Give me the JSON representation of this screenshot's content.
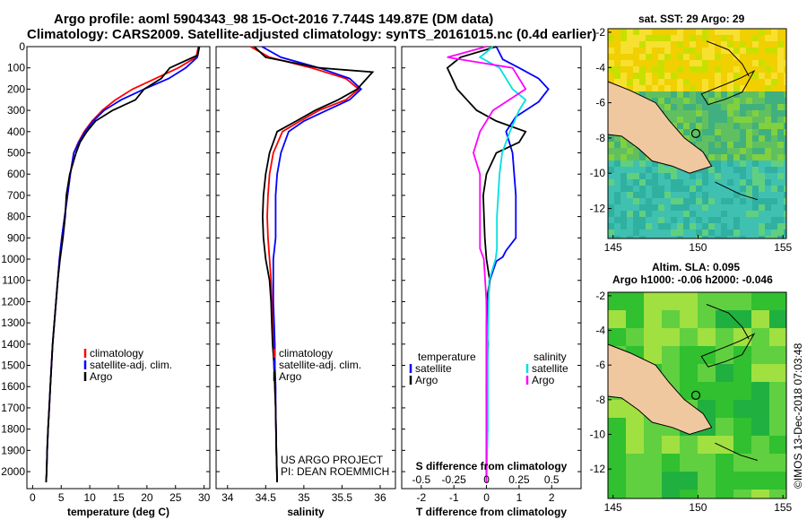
{
  "header": {
    "line1": "Argo profile: aoml 5904343_98 15-Oct-2016 7.744S 149.87E (DM data)",
    "line2": "Climatology: CARS2009. Satellite-adjusted climatology: synTS_20161015.nc (0.4d earlier)"
  },
  "colors": {
    "climatology": "#ff0000",
    "satellite": "#0000ff",
    "argo": "#000000",
    "sal_satellite": "#00e0e0",
    "sal_argo": "#ff00ff",
    "land": "#f0c8a0"
  },
  "credit": {
    "line1": "US ARGO PROJECT",
    "line2": "PI: DEAN ROEMMICH"
  },
  "watermark": "©IMOS 13-Dec-2018 07:03:48",
  "chart_data": [
    {
      "type": "line",
      "name": "temperature",
      "xlabel": "temperature (deg C)",
      "xlim": [
        -1,
        31
      ],
      "ylim": [
        2080,
        0
      ],
      "xticks": [
        0,
        5,
        10,
        15,
        20,
        25,
        30
      ],
      "yticks": [
        0,
        100,
        200,
        300,
        400,
        500,
        600,
        700,
        800,
        900,
        1000,
        1100,
        1200,
        1300,
        1400,
        1500,
        1600,
        1700,
        1800,
        1900,
        2000
      ],
      "legend": [
        "climatology",
        "satellite-adj. clim.",
        "Argo"
      ],
      "series": [
        {
          "name": "climatology",
          "x": [
            29.0,
            28.6,
            25.5,
            21.5,
            17.5,
            14.5,
            12.2,
            10.4,
            9.0,
            8.0,
            7.2,
            6.6,
            6.1,
            5.6,
            5.1,
            4.7,
            4.4,
            4.1,
            3.8,
            3.5,
            3.3,
            3.1,
            2.9,
            2.7,
            2.55,
            2.45,
            2.35
          ],
          "y": [
            0,
            50,
            100,
            150,
            200,
            250,
            300,
            350,
            400,
            450,
            500,
            600,
            700,
            800,
            900,
            1000,
            1100,
            1200,
            1300,
            1400,
            1500,
            1600,
            1700,
            1800,
            1900,
            2000,
            2050
          ]
        },
        {
          "name": "satellite-adj. clim.",
          "x": [
            29.2,
            28.8,
            26.8,
            23.8,
            19.5,
            15.5,
            12.5,
            10.6,
            9.2,
            8.1,
            7.2,
            6.6,
            6.1,
            5.6,
            5.1,
            4.7,
            4.4,
            4.1,
            3.8,
            3.5,
            3.3,
            3.1,
            2.9,
            2.7,
            2.55,
            2.45,
            2.35
          ],
          "y": [
            0,
            50,
            100,
            150,
            200,
            250,
            300,
            350,
            400,
            450,
            500,
            600,
            700,
            800,
            900,
            1000,
            1100,
            1200,
            1300,
            1400,
            1500,
            1600,
            1700,
            1800,
            1900,
            2000,
            2050
          ]
        },
        {
          "name": "Argo",
          "x": [
            29.1,
            28.9,
            24.0,
            22.5,
            19.5,
            18.0,
            14.0,
            11.0,
            9.5,
            8.3,
            7.6,
            6.5,
            5.9,
            5.7,
            5.3,
            4.8,
            4.4,
            4.1,
            3.8,
            3.5,
            3.3,
            3.1,
            2.9,
            2.7,
            2.55,
            2.45,
            2.35
          ],
          "y": [
            0,
            40,
            100,
            150,
            200,
            250,
            300,
            350,
            400,
            450,
            500,
            600,
            700,
            800,
            900,
            1000,
            1100,
            1200,
            1300,
            1400,
            1500,
            1600,
            1700,
            1800,
            1900,
            2000,
            2050
          ]
        }
      ]
    },
    {
      "type": "line",
      "name": "salinity",
      "xlabel": "salinity",
      "xlim": [
        33.85,
        36.2
      ],
      "ylim": [
        2080,
        0
      ],
      "xticks": [
        34,
        34.5,
        35,
        35.5,
        36
      ],
      "legend": [
        "climatology",
        "satellite-adj. clim.",
        "Argo"
      ],
      "series": [
        {
          "name": "climatology",
          "x": [
            34.3,
            34.55,
            35.1,
            35.55,
            35.72,
            35.55,
            35.2,
            34.95,
            34.72,
            34.6,
            34.55,
            34.53,
            34.52,
            34.53,
            34.55,
            34.57,
            34.58,
            34.59,
            34.6,
            34.61,
            34.62,
            34.63,
            34.64,
            34.65
          ],
          "y": [
            0,
            50,
            100,
            150,
            200,
            250,
            300,
            350,
            400,
            500,
            600,
            700,
            800,
            900,
            1000,
            1100,
            1200,
            1300,
            1400,
            1500,
            1600,
            1700,
            1900,
            2050
          ]
        },
        {
          "name": "satellite-adj. clim.",
          "x": [
            34.45,
            34.7,
            35.2,
            35.6,
            35.75,
            35.6,
            35.3,
            35.0,
            34.8,
            34.7,
            34.65,
            34.63,
            34.63,
            34.63,
            34.6,
            34.6,
            34.6,
            34.61,
            34.62,
            34.62,
            34.63,
            34.63,
            34.64,
            34.65
          ],
          "y": [
            0,
            50,
            100,
            150,
            200,
            250,
            300,
            350,
            400,
            500,
            600,
            700,
            800,
            900,
            1000,
            1100,
            1200,
            1300,
            1400,
            1500,
            1600,
            1700,
            1900,
            2050
          ]
        },
        {
          "name": "Argo",
          "x": [
            34.35,
            34.5,
            35.2,
            35.9,
            35.7,
            35.45,
            35.15,
            34.9,
            34.65,
            34.55,
            34.5,
            34.47,
            34.46,
            34.47,
            34.5,
            34.55,
            34.57,
            34.58,
            34.59,
            34.61,
            34.62,
            34.63,
            34.64,
            34.65
          ],
          "y": [
            0,
            50,
            100,
            120,
            200,
            250,
            300,
            350,
            400,
            500,
            600,
            700,
            800,
            900,
            1000,
            1100,
            1200,
            1300,
            1400,
            1500,
            1600,
            1700,
            1900,
            2050
          ]
        }
      ]
    },
    {
      "type": "line",
      "name": "difference",
      "xlabel": "T difference from climatology",
      "xlabel2": "S difference from climatology",
      "xlim": [
        -2.6,
        2.9
      ],
      "xticks": [
        -2,
        -1,
        0,
        1,
        2
      ],
      "xticks2": [
        -0.5,
        -0.25,
        0,
        0.25,
        0.5
      ],
      "xtick2_labels": [
        "-0.5",
        "-0.25",
        "0",
        "0.25",
        "0.5"
      ],
      "ylim": [
        2080,
        0
      ],
      "legend_left_title": "temperature",
      "legend_right_title": "salinity",
      "legend": [
        "satellite",
        "Argo",
        "satellite",
        "Argo"
      ],
      "series": [
        {
          "name": "temperature satellite",
          "x": [
            0.3,
            0.5,
            1.0,
            1.6,
            1.9,
            1.6,
            0.9,
            0.6,
            0.8,
            0.9,
            0.9,
            0.6,
            0.5,
            0.3,
            0.1,
            0.0,
            0.0,
            0.0,
            0.0
          ],
          "y": [
            0,
            60,
            100,
            150,
            200,
            260,
            330,
            400,
            500,
            700,
            900,
            960,
            990,
            1010,
            1100,
            1300,
            1600,
            1900,
            2050
          ]
        },
        {
          "name": "temperature Argo",
          "x": [
            0.3,
            -0.8,
            -1.2,
            -0.9,
            -0.6,
            -0.3,
            0.3,
            1.2,
            1.0,
            0.3,
            0.0,
            -0.1,
            -0.05,
            0.0,
            0.1,
            0.0,
            0.05,
            0.0,
            0.02,
            0.0
          ],
          "y": [
            0,
            50,
            100,
            200,
            250,
            300,
            350,
            400,
            450,
            500,
            600,
            700,
            900,
            1000,
            1100,
            1200,
            1400,
            1600,
            1800,
            2050
          ]
        },
        {
          "name": "salinity satellite",
          "x": [
            0.05,
            -0.05,
            0.1,
            0.2,
            0.3,
            0.25,
            0.18,
            0.12,
            0.1,
            0.08,
            0.08,
            0.07,
            0.02,
            0.01,
            0.01,
            0.0
          ],
          "y": [
            0,
            50,
            100,
            200,
            250,
            300,
            400,
            500,
            600,
            800,
            950,
            1000,
            1100,
            1400,
            1800,
            2050
          ]
        },
        {
          "name": "salinity Argo",
          "x": [
            0.0,
            -0.3,
            0.2,
            0.3,
            0.05,
            -0.05,
            -0.1,
            -0.05,
            -0.05,
            -0.05,
            -0.05,
            -0.02,
            0.0,
            0.0,
            0.0
          ],
          "y": [
            0,
            50,
            100,
            200,
            300,
            400,
            500,
            600,
            800,
            900,
            950,
            1000,
            1200,
            1600,
            2050
          ]
        }
      ]
    },
    {
      "type": "heatmap",
      "name": "sst_map",
      "title": "sat. SST: 29 Argo: 29",
      "xticks": [
        145,
        150,
        155
      ],
      "yticks": [
        -2,
        -4,
        -6,
        -8,
        -10,
        -12
      ],
      "xlim": [
        144.7,
        155.2
      ],
      "ylim": [
        -13.7,
        -1.8
      ],
      "float_position": [
        149.87,
        -7.744
      ]
    },
    {
      "type": "heatmap",
      "name": "sla_map",
      "title": "Altim. SLA: 0.095",
      "subtitle": "Argo h1000: -0.06 h2000: -0.046",
      "xticks": [
        145,
        150,
        155
      ],
      "yticks": [
        -2,
        -4,
        -6,
        -8,
        -10,
        -12
      ],
      "xlim": [
        144.7,
        155.2
      ],
      "ylim": [
        -13.7,
        -1.8
      ],
      "float_position": [
        149.87,
        -7.744
      ]
    }
  ]
}
